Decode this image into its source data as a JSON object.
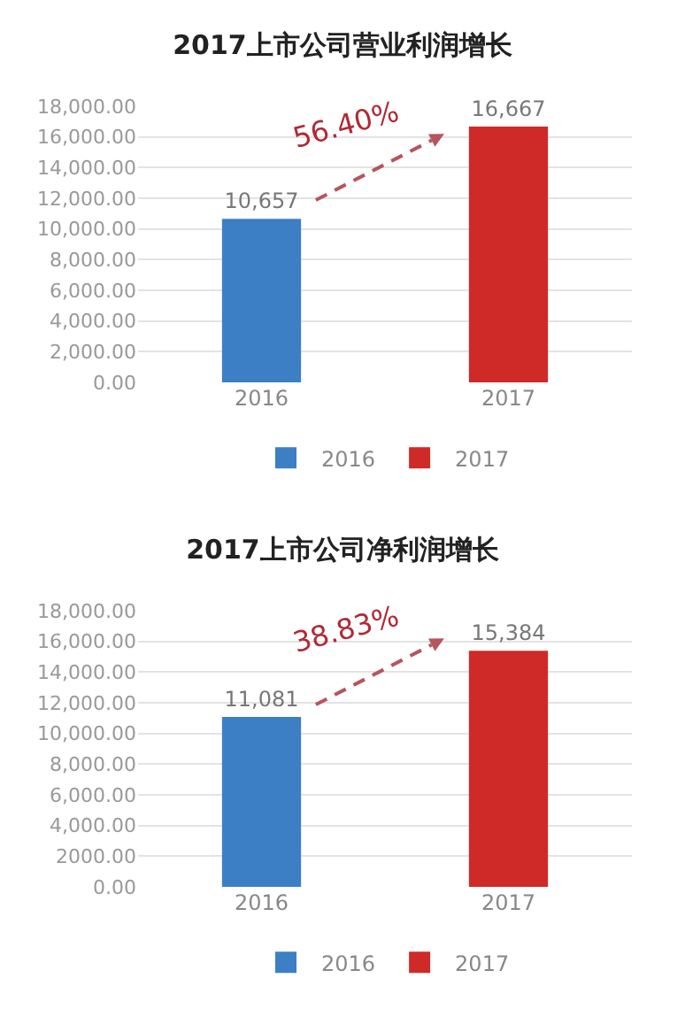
{
  "chart_data": [
    {
      "type": "bar",
      "title": "2017上市公司营业利润增长",
      "categories": [
        "2016",
        "2017"
      ],
      "series": [
        {
          "name": "2016",
          "color": "#3d7fc4",
          "values": [
            10657,
            null
          ],
          "value_labels": [
            "10,657",
            null
          ]
        },
        {
          "name": "2017",
          "color": "#cf2a27",
          "values": [
            null,
            16667
          ],
          "value_labels": [
            null,
            "16,667"
          ]
        }
      ],
      "annotations": [
        "56.40%"
      ],
      "ylim": [
        0,
        18000
      ],
      "yticks": [
        {
          "value": 0,
          "label": "0.00"
        },
        {
          "value": 2000,
          "label": "2,000.00"
        },
        {
          "value": 4000,
          "label": "4,000.00"
        },
        {
          "value": 6000,
          "label": "6,000.00"
        },
        {
          "value": 8000,
          "label": "8,000.00"
        },
        {
          "value": 10000,
          "label": "10,000.00"
        },
        {
          "value": 12000,
          "label": "12,000.00"
        },
        {
          "value": 14000,
          "label": "14,000.00"
        },
        {
          "value": 16000,
          "label": "16,000.00"
        },
        {
          "value": 18000,
          "label": "18,000.00"
        }
      ],
      "grid": "y",
      "legend": "bottom"
    },
    {
      "type": "bar",
      "title": "2017上市公司净利润增长",
      "categories": [
        "2016",
        "2017"
      ],
      "series": [
        {
          "name": "2016",
          "color": "#3d7fc4",
          "values": [
            11081,
            null
          ],
          "value_labels": [
            "11,081",
            null
          ]
        },
        {
          "name": "2017",
          "color": "#cf2a27",
          "values": [
            null,
            15384
          ],
          "value_labels": [
            null,
            "15,384"
          ]
        }
      ],
      "annotations": [
        "38.83%"
      ],
      "ylim": [
        0,
        18000
      ],
      "yticks": [
        {
          "value": 0,
          "label": "0.00"
        },
        {
          "value": 2000,
          "label": "2000.00"
        },
        {
          "value": 4000,
          "label": "4,000.00"
        },
        {
          "value": 6000,
          "label": "6,000.00"
        },
        {
          "value": 8000,
          "label": "8,000.00"
        },
        {
          "value": 10000,
          "label": "10,000.00"
        },
        {
          "value": 12000,
          "label": "12,000.00"
        },
        {
          "value": 14000,
          "label": "14,000.00"
        },
        {
          "value": 16000,
          "label": "16,000.00"
        },
        {
          "value": 18000,
          "label": "18,000.00"
        }
      ],
      "grid": "y",
      "legend": "bottom"
    }
  ]
}
